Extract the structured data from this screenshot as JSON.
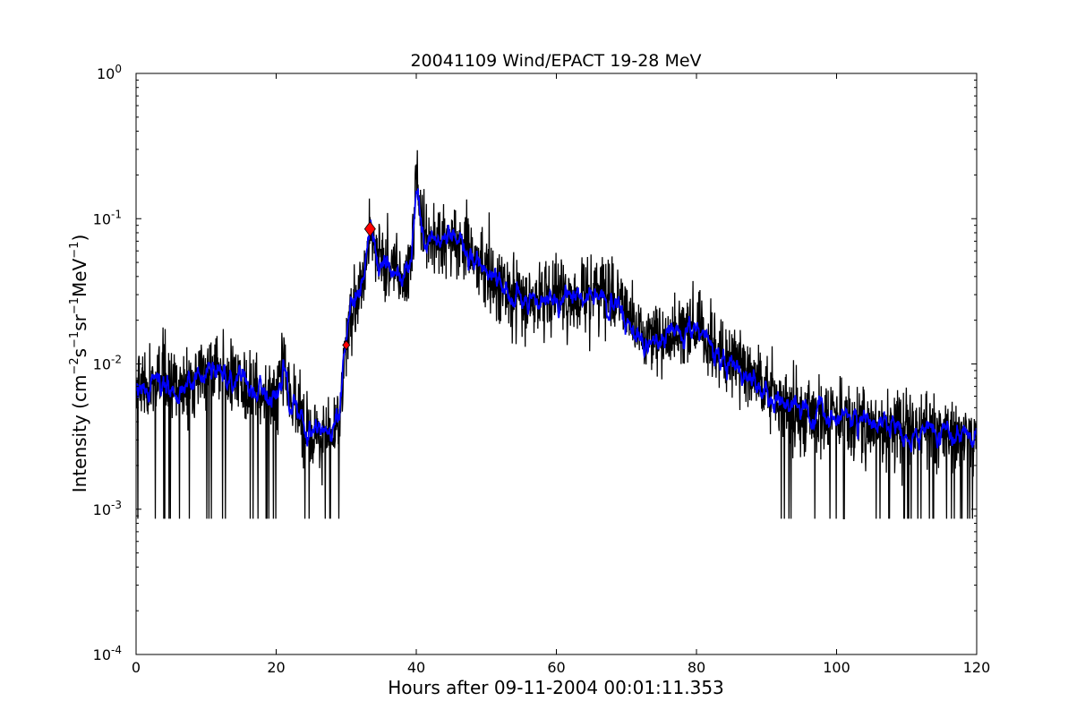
{
  "chart_data": {
    "type": "line",
    "title": "20041109 Wind/EPACT 19-28 MeV",
    "xlabel": "Hours after 09-11-2004 00:01:11.353",
    "ylabel": {
      "base": "Intensity (cm",
      "exp1": "−2",
      "mid1": "s",
      "exp2": "−1",
      "mid2": "sr",
      "exp3": "−1",
      "mid3": "MeV",
      "exp4": "−1",
      "end": ")"
    },
    "xlim": [
      0,
      120
    ],
    "ylim": [
      0.0001,
      1
    ],
    "yscale": "log",
    "grid": false,
    "x_ticks": [
      0,
      20,
      40,
      60,
      80,
      100,
      120
    ],
    "y_ticks": [
      {
        "value": 0.0001,
        "base": "10",
        "exp": "-4"
      },
      {
        "value": 0.001,
        "base": "10",
        "exp": "-3"
      },
      {
        "value": 0.01,
        "base": "10",
        "exp": "-2"
      },
      {
        "value": 0.1,
        "base": "10",
        "exp": "-1"
      },
      {
        "value": 1,
        "base": "10",
        "exp": "0"
      }
    ],
    "series": [
      {
        "style": "raw",
        "color": "#000000",
        "envelope": [
          {
            "x": 0,
            "y": 0.007
          },
          {
            "x": 2,
            "y": 0.0075
          },
          {
            "x": 4,
            "y": 0.008
          },
          {
            "x": 6,
            "y": 0.007
          },
          {
            "x": 8,
            "y": 0.0065
          },
          {
            "x": 10,
            "y": 0.0085
          },
          {
            "x": 11.5,
            "y": 0.0105
          },
          {
            "x": 13,
            "y": 0.0085
          },
          {
            "x": 15,
            "y": 0.007
          },
          {
            "x": 17,
            "y": 0.0065
          },
          {
            "x": 19,
            "y": 0.006
          },
          {
            "x": 20,
            "y": 0.0065
          },
          {
            "x": 21,
            "y": 0.0095
          },
          {
            "x": 22,
            "y": 0.006
          },
          {
            "x": 24,
            "y": 0.004
          },
          {
            "x": 26,
            "y": 0.0035
          },
          {
            "x": 28,
            "y": 0.003
          },
          {
            "x": 29,
            "y": 0.0045
          },
          {
            "x": 29.5,
            "y": 0.008
          },
          {
            "x": 30,
            "y": 0.014
          },
          {
            "x": 30.5,
            "y": 0.022
          },
          {
            "x": 31.5,
            "y": 0.03
          },
          {
            "x": 32.5,
            "y": 0.04
          },
          {
            "x": 33.4,
            "y": 0.085
          },
          {
            "x": 34.2,
            "y": 0.06
          },
          {
            "x": 35,
            "y": 0.05
          },
          {
            "x": 36.5,
            "y": 0.045
          },
          {
            "x": 38,
            "y": 0.042
          },
          {
            "x": 39.3,
            "y": 0.05
          },
          {
            "x": 40,
            "y": 0.17
          },
          {
            "x": 40.6,
            "y": 0.12
          },
          {
            "x": 41.2,
            "y": 0.07
          },
          {
            "x": 43,
            "y": 0.075
          },
          {
            "x": 45,
            "y": 0.075
          },
          {
            "x": 47,
            "y": 0.065
          },
          {
            "x": 48.5,
            "y": 0.05
          },
          {
            "x": 50,
            "y": 0.042
          },
          {
            "x": 52,
            "y": 0.035
          },
          {
            "x": 54,
            "y": 0.029
          },
          {
            "x": 57,
            "y": 0.028
          },
          {
            "x": 60,
            "y": 0.029
          },
          {
            "x": 63,
            "y": 0.03
          },
          {
            "x": 66,
            "y": 0.031
          },
          {
            "x": 68.5,
            "y": 0.03
          },
          {
            "x": 70,
            "y": 0.022
          },
          {
            "x": 71,
            "y": 0.016
          },
          {
            "x": 73,
            "y": 0.014
          },
          {
            "x": 75,
            "y": 0.016
          },
          {
            "x": 77,
            "y": 0.016
          },
          {
            "x": 80,
            "y": 0.018
          },
          {
            "x": 82,
            "y": 0.015
          },
          {
            "x": 83,
            "y": 0.011
          },
          {
            "x": 85,
            "y": 0.0105
          },
          {
            "x": 87,
            "y": 0.0095
          },
          {
            "x": 89,
            "y": 0.007
          },
          {
            "x": 91,
            "y": 0.006
          },
          {
            "x": 93,
            "y": 0.005
          },
          {
            "x": 96,
            "y": 0.0045
          },
          {
            "x": 100,
            "y": 0.0045
          },
          {
            "x": 104,
            "y": 0.004
          },
          {
            "x": 108,
            "y": 0.0038
          },
          {
            "x": 112,
            "y": 0.0035
          },
          {
            "x": 116,
            "y": 0.0033
          },
          {
            "x": 120,
            "y": 0.0032
          }
        ]
      },
      {
        "style": "smoothed",
        "color": "#0000ff"
      }
    ],
    "markers": [
      {
        "x": 30,
        "y": 0.0135,
        "color": "#ff0000",
        "shape": "diamond",
        "size": "small"
      },
      {
        "x": 33.4,
        "y": 0.085,
        "color": "#ff0000",
        "shape": "diamond",
        "size": "large"
      }
    ]
  }
}
